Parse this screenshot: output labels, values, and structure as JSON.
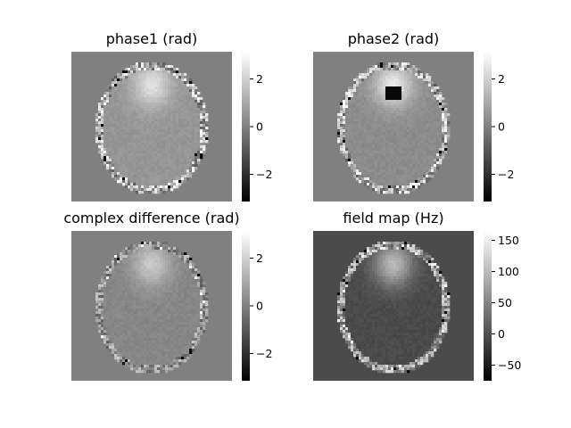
{
  "chart_data": [
    {
      "type": "heatmap",
      "title": "phase1 (rad)",
      "colormap": "gray",
      "colorbar": {
        "range": [
          -3.14,
          3.14
        ],
        "ticks": [
          2,
          0,
          -2
        ],
        "tick_labels": [
          "2",
          "0",
          "−2"
        ]
      },
      "background_value": 0,
      "content": "axial brain slice; bright region near the top-center, noisy/wrapped values at the skull rim"
    },
    {
      "type": "heatmap",
      "title": "phase2 (rad)",
      "colormap": "gray",
      "colorbar": {
        "range": [
          -3.14,
          3.14
        ],
        "ticks": [
          2,
          0,
          -2
        ],
        "tick_labels": [
          "2",
          "0",
          "−2"
        ]
      },
      "background_value": 0,
      "content": "axial brain slice; phase-wrap dark spot near the top-center, noisy rim"
    },
    {
      "type": "heatmap",
      "title": "complex difference (rad)",
      "colormap": "gray",
      "colorbar": {
        "range": [
          -3.14,
          3.14
        ],
        "ticks": [
          2,
          0,
          -2
        ],
        "tick_labels": [
          "2",
          "0",
          "−2"
        ]
      },
      "background_value": 0,
      "content": "axial brain slice; mostly near zero with a faint bright frontal region"
    },
    {
      "type": "heatmap",
      "title": "field map (Hz)",
      "colormap": "gray",
      "colorbar": {
        "range": [
          -75,
          165
        ],
        "ticks": [
          150,
          100,
          50,
          0,
          -50
        ],
        "tick_labels": [
          "150",
          "100",
          "50",
          "0",
          "−50"
        ]
      },
      "background_value": 0,
      "content": "axial brain slice; frontal region brighter, darker background"
    }
  ]
}
